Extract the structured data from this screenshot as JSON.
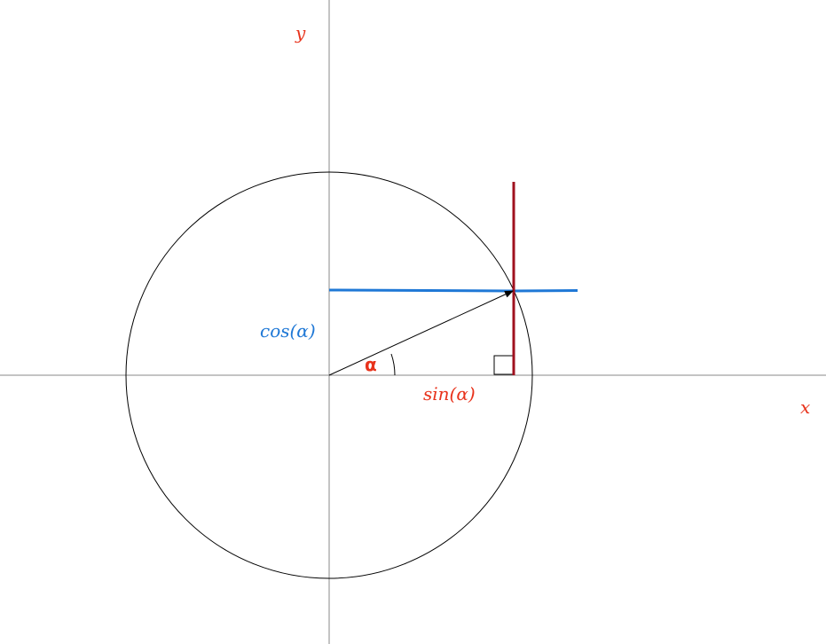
{
  "labels": {
    "y_axis": "y",
    "x_axis": "x",
    "cos": "cos(α)",
    "sin": "sin(α)",
    "angle": "α"
  },
  "colors": {
    "axis": "#888888",
    "circle": "#000000",
    "vector": "#000000",
    "horizontal_line": "#1f78d6",
    "vertical_line": "#a0111f",
    "red_label": "#e8331c",
    "blue_label": "#1f78d6"
  }
}
